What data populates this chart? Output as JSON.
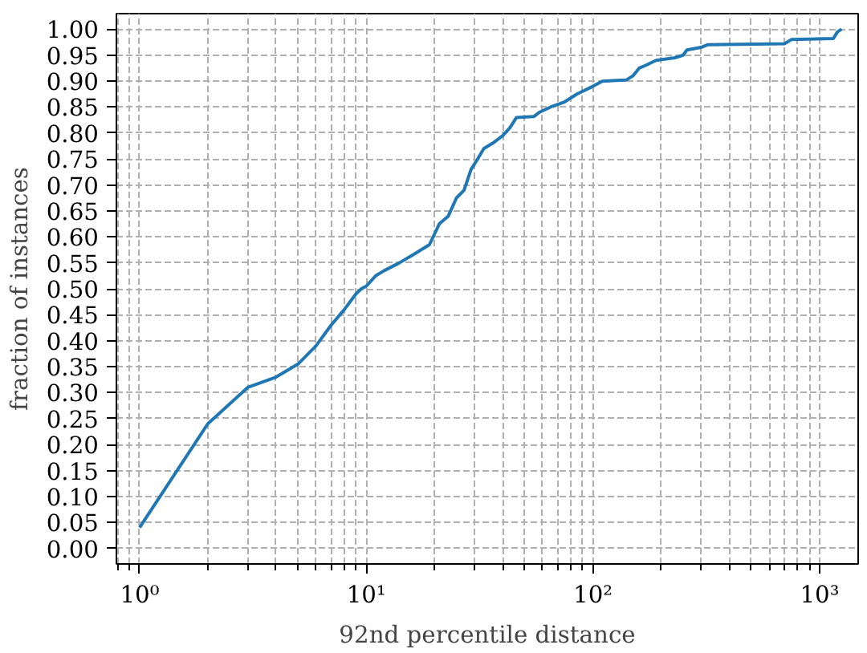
{
  "chart_data": {
    "type": "line",
    "xlabel": "92nd percentile distance",
    "ylabel": "fraction of instances",
    "log": "x",
    "grid": true,
    "marker": "none",
    "line_style": "solid",
    "xlim": [
      0.79,
      1480
    ],
    "ylim": [
      -0.03,
      1.03
    ],
    "xticks": [
      {
        "value": 0.8,
        "label": null
      },
      {
        "value": 0.9,
        "label": null
      },
      {
        "value": 1,
        "label": "10⁰"
      },
      {
        "value": 2,
        "label": null
      },
      {
        "value": 3,
        "label": null
      },
      {
        "value": 4,
        "label": null
      },
      {
        "value": 5,
        "label": null
      },
      {
        "value": 6,
        "label": null
      },
      {
        "value": 7,
        "label": null
      },
      {
        "value": 8,
        "label": null
      },
      {
        "value": 9,
        "label": null
      },
      {
        "value": 10,
        "label": "10¹"
      },
      {
        "value": 20,
        "label": null
      },
      {
        "value": 30,
        "label": null
      },
      {
        "value": 40,
        "label": null
      },
      {
        "value": 50,
        "label": null
      },
      {
        "value": 60,
        "label": null
      },
      {
        "value": 70,
        "label": null
      },
      {
        "value": 80,
        "label": null
      },
      {
        "value": 90,
        "label": null
      },
      {
        "value": 100,
        "label": "10²"
      },
      {
        "value": 200,
        "label": null
      },
      {
        "value": 300,
        "label": null
      },
      {
        "value": 400,
        "label": null
      },
      {
        "value": 500,
        "label": null
      },
      {
        "value": 600,
        "label": null
      },
      {
        "value": 700,
        "label": null
      },
      {
        "value": 800,
        "label": null
      },
      {
        "value": 900,
        "label": null
      },
      {
        "value": 1000,
        "label": "10³"
      }
    ],
    "yticks": [
      {
        "value": 0,
        "label": "0.00"
      },
      {
        "value": 0.05,
        "label": "0.05"
      },
      {
        "value": 0.1,
        "label": "0.10"
      },
      {
        "value": 0.15,
        "label": "0.15"
      },
      {
        "value": 0.2,
        "label": "0.20"
      },
      {
        "value": 0.25,
        "label": "0.25"
      },
      {
        "value": 0.3,
        "label": "0.30"
      },
      {
        "value": 0.35,
        "label": "0.35"
      },
      {
        "value": 0.4,
        "label": "0.40"
      },
      {
        "value": 0.45,
        "label": "0.45"
      },
      {
        "value": 0.5,
        "label": "0.50"
      },
      {
        "value": 0.55,
        "label": "0.55"
      },
      {
        "value": 0.6,
        "label": "0.60"
      },
      {
        "value": 0.65,
        "label": "0.65"
      },
      {
        "value": 0.7,
        "label": "0.70"
      },
      {
        "value": 0.75,
        "label": "0.75"
      },
      {
        "value": 0.8,
        "label": "0.80"
      },
      {
        "value": 0.85,
        "label": "0.85"
      },
      {
        "value": 0.9,
        "label": "0.90"
      },
      {
        "value": 0.95,
        "label": "0.95"
      },
      {
        "value": 1,
        "label": "1.00"
      }
    ],
    "series": [
      {
        "color": "#1f77b4",
        "x": [
          1,
          2,
          3,
          4,
          5,
          6,
          7,
          8,
          9,
          9.5,
          10,
          11,
          12,
          14,
          16,
          19,
          21,
          23,
          25,
          27,
          29,
          31,
          33,
          36,
          40,
          43,
          46,
          55,
          58,
          65,
          75,
          85,
          100,
          110,
          140,
          150,
          160,
          170,
          190,
          230,
          250,
          260,
          300,
          320,
          700,
          750,
          1150,
          1200,
          1250
        ],
        "values": [
          0.04,
          0.24,
          0.31,
          0.33,
          0.355,
          0.39,
          0.43,
          0.46,
          0.49,
          0.5,
          0.505,
          0.525,
          0.535,
          0.55,
          0.565,
          0.585,
          0.625,
          0.64,
          0.675,
          0.69,
          0.73,
          0.75,
          0.77,
          0.78,
          0.795,
          0.81,
          0.83,
          0.832,
          0.84,
          0.85,
          0.86,
          0.875,
          0.89,
          0.9,
          0.902,
          0.91,
          0.925,
          0.93,
          0.94,
          0.945,
          0.95,
          0.96,
          0.965,
          0.97,
          0.972,
          0.98,
          0.982,
          0.995,
          1.0
        ]
      }
    ]
  }
}
